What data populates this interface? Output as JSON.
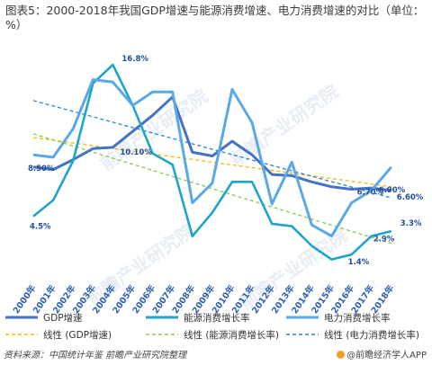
{
  "title": "图表5：2000-2018年我国GDP增速与能源消费增速、电力消费增速的对比（单位：%）",
  "source": "资料来源：中国统计年鉴 前瞻产业研究院整理",
  "brand": "@前瞻经济学人APP",
  "watermark": "前瞻产业研究院",
  "colors": {
    "gdp": "#4472c4",
    "energy": "#1fa5c9",
    "power": "#5aa8e6",
    "trend_gdp": "#f5b800",
    "trend_energy": "#8cc84b",
    "trend_power": "#2e7fd8"
  },
  "chart_data": {
    "type": "line",
    "categories": [
      "2000年",
      "2001年",
      "2002年",
      "2003年",
      "2004年",
      "2005年",
      "2006年",
      "2007年",
      "2008年",
      "2009年",
      "2010年",
      "2011年",
      "2012年",
      "2013年",
      "2014年",
      "2015年",
      "2016年",
      "2017年",
      "2018年"
    ],
    "series": [
      {
        "name": "GDP增速",
        "values": [
          8.5,
          8.3,
          9.1,
          10.0,
          10.1,
          11.4,
          12.7,
          14.2,
          9.7,
          9.4,
          10.6,
          9.5,
          7.9,
          7.8,
          7.3,
          6.9,
          6.7,
          6.8,
          6.6
        ]
      },
      {
        "name": "能源消费增长率",
        "values": [
          4.5,
          5.8,
          9.0,
          15.3,
          16.8,
          13.5,
          9.6,
          8.7,
          2.9,
          4.8,
          7.3,
          7.3,
          3.9,
          3.7,
          2.1,
          1.0,
          1.4,
          2.9,
          3.3
        ]
      },
      {
        "name": "电力消费增长率",
        "values": [
          9.5,
          9.3,
          11.6,
          15.6,
          15.4,
          13.5,
          14.6,
          14.6,
          5.6,
          7.2,
          14.8,
          12.1,
          5.5,
          8.9,
          3.8,
          2.9,
          5.6,
          6.6,
          8.5
        ]
      }
    ],
    "trendlines": [
      {
        "name": "线性 (GDP增速)",
        "values": [
          10.9,
          6.9
        ]
      },
      {
        "name": "线性 (能源消费增长率)",
        "values": [
          11.2,
          2.3
        ]
      },
      {
        "name": "线性 (电力消费增长率)",
        "values": [
          13.9,
          6.0
        ]
      }
    ],
    "labels": [
      "4.5%",
      "16.8%",
      "10.10%",
      "8.50%",
      "6.90%",
      "6.70%",
      "6.60%",
      "1.4%",
      "2.9%",
      "3.3%"
    ],
    "ylim": [
      -1,
      19
    ],
    "xlabel": "",
    "ylabel": "",
    "legend_position": "bottom",
    "grid": false
  }
}
